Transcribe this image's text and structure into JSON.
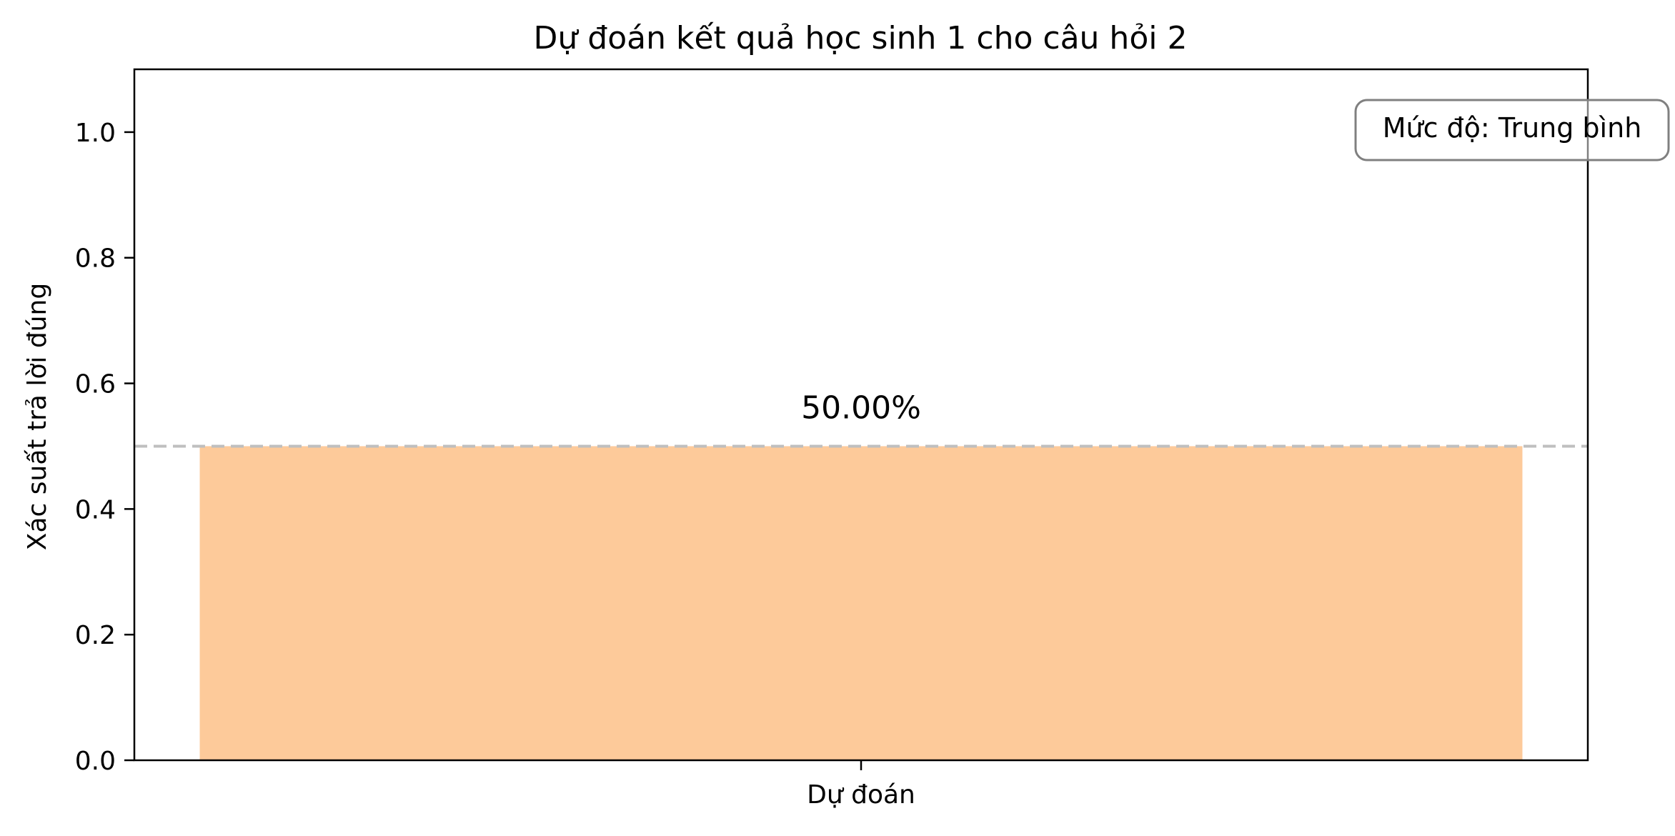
{
  "chart_data": {
    "type": "bar",
    "title": "Dự đoán kết quả học sinh 1 cho câu hỏi 2",
    "xlabel": "",
    "ylabel": "Xác suất trả lời đúng",
    "categories": [
      "Dự đoán"
    ],
    "values": [
      0.5
    ],
    "bar_labels": [
      "50.00%"
    ],
    "bar_color": "#fdca9a",
    "ylim": [
      0,
      1.1
    ],
    "yticks": [
      0.0,
      0.2,
      0.4,
      0.6,
      0.8,
      1.0
    ],
    "ytick_labels": [
      "0.0",
      "0.2",
      "0.4",
      "0.6",
      "0.8",
      "1.0"
    ],
    "reference_line": {
      "y": 0.5,
      "style": "dashed",
      "color": "#bfbfbf"
    },
    "annotation": {
      "text": "Mức độ: Trung bình",
      "position": "top-right"
    },
    "grid": false,
    "legend": null
  }
}
